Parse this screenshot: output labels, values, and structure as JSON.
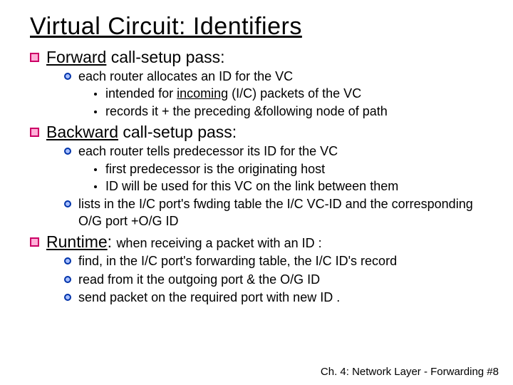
{
  "title": "Virtual Circuit: Identifiers",
  "section1": {
    "heading_u": "Forward",
    "heading_rest": " call-setup pass:",
    "b1": "each router allocates an ID for the VC",
    "b1a_pre": "intended for ",
    "b1a_u": "incoming",
    "b1a_post": " (I/C) packets of the VC",
    "b1b": "records it + the preceding &following node of path"
  },
  "section2": {
    "heading_u": "Backward",
    "heading_rest": " call-setup pass:",
    "b1": "each router tells predecessor its ID for the  VC",
    "b1a": "first predecessor is the originating host",
    "b1b": "ID will be used for this VC on the link between them",
    "b2": "lists in the I/C port's fwding table the I/C VC-ID and the corresponding  O/G port +O/G ID"
  },
  "section3": {
    "heading_u": "Runtime",
    "heading_colon": ": ",
    "heading_small": "when receiving a packet with an ID :",
    "b1": "find, in the I/C port's forwarding table, the I/C ID's record",
    "b2": "read from it the outgoing port & the O/G ID",
    "b3": "send packet on the required port with new ID ."
  },
  "footer": "Ch. 4: Network Layer - Forwarding  #8"
}
